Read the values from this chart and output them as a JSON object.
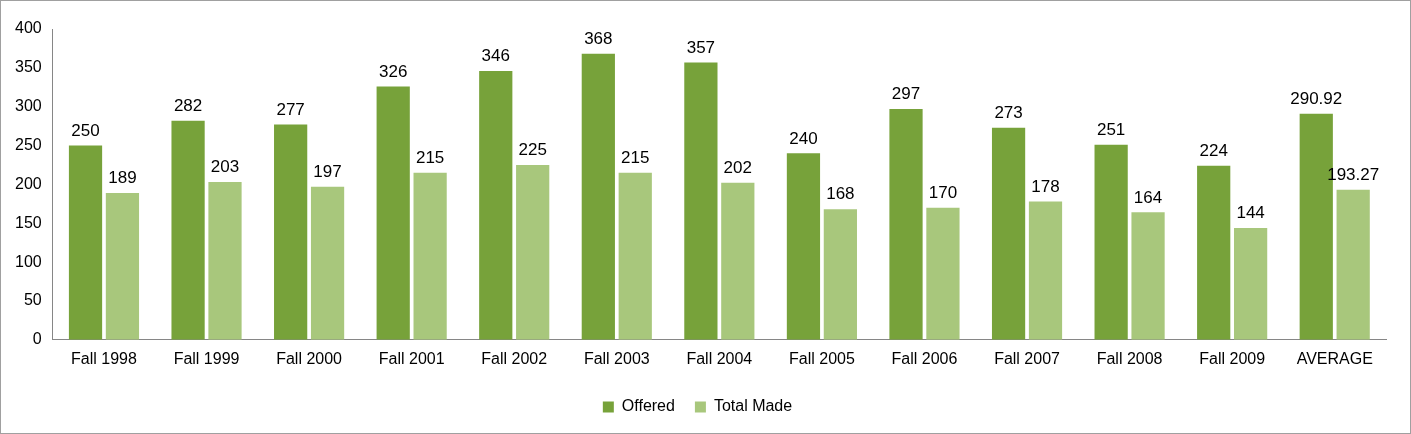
{
  "chart_data": {
    "type": "bar",
    "categories": [
      "Fall 1998",
      "Fall 1999",
      "Fall 2000",
      "Fall 2001",
      "Fall 2002",
      "Fall 2003",
      "Fall 2004",
      "Fall 2005",
      "Fall 2006",
      "Fall 2007",
      "Fall 2008",
      "Fall 2009",
      "AVERAGE"
    ],
    "series": [
      {
        "name": "Offered",
        "color": "#77a23a",
        "values": [
          250,
          282,
          277,
          326,
          346,
          368,
          357,
          240,
          297,
          273,
          251,
          224,
          290.92
        ]
      },
      {
        "name": "Total Made",
        "color": "#a8c77c",
        "values": [
          189,
          203,
          197,
          215,
          225,
          215,
          202,
          168,
          170,
          178,
          164,
          144,
          193.27
        ]
      }
    ],
    "ylim": [
      0,
      400
    ],
    "yticks": [
      0,
      50,
      100,
      150,
      200,
      250,
      300,
      350,
      400
    ],
    "grid": false,
    "legend": "bottom",
    "data_labels": true
  }
}
